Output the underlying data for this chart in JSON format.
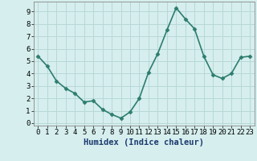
{
  "x": [
    0,
    1,
    2,
    3,
    4,
    5,
    6,
    7,
    8,
    9,
    10,
    11,
    12,
    13,
    14,
    15,
    16,
    17,
    18,
    19,
    20,
    21,
    22,
    23
  ],
  "y": [
    5.4,
    4.6,
    3.4,
    2.8,
    2.4,
    1.7,
    1.8,
    1.1,
    0.7,
    0.4,
    0.9,
    2.0,
    4.1,
    5.6,
    7.5,
    9.3,
    8.4,
    7.6,
    5.4,
    3.9,
    3.6,
    4.0,
    5.3,
    5.4
  ],
  "line_color": "#2d7d6e",
  "marker": "D",
  "marker_size": 2.5,
  "line_width": 1.2,
  "bg_color": "#d6eeee",
  "grid_color": "#b8d8d8",
  "xlabel": "Humidex (Indice chaleur)",
  "xlabel_fontsize": 7.5,
  "tick_fontsize": 6.5,
  "xlim": [
    -0.5,
    23.5
  ],
  "ylim": [
    -0.2,
    9.8
  ],
  "yticks": [
    0,
    1,
    2,
    3,
    4,
    5,
    6,
    7,
    8,
    9
  ],
  "xticks": [
    0,
    1,
    2,
    3,
    4,
    5,
    6,
    7,
    8,
    9,
    10,
    11,
    12,
    13,
    14,
    15,
    16,
    17,
    18,
    19,
    20,
    21,
    22,
    23
  ],
  "spine_color": "#888888",
  "xlabel_color": "#1a3a6e",
  "xlabel_bold": true
}
